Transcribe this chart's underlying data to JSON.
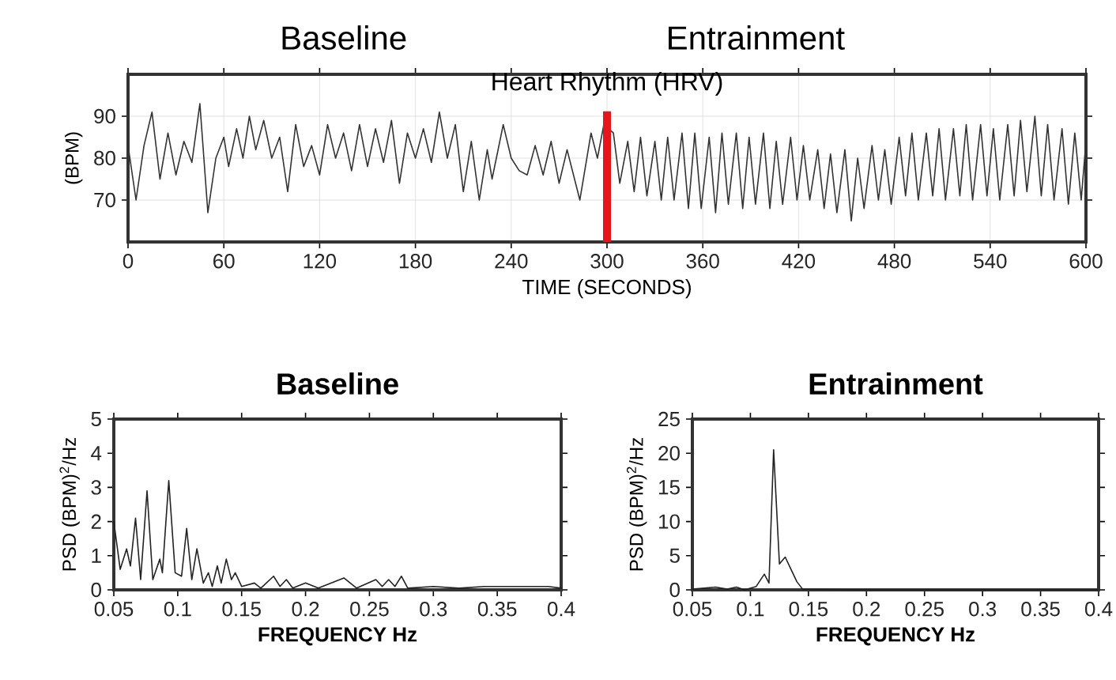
{
  "chart_data": [
    {
      "type": "line",
      "title": "Heart Rhythm (HRV)",
      "xlabel": "TIME (SECONDS)",
      "ylabel": "(BPM)",
      "annotations": [
        "Baseline",
        "Entrainment"
      ],
      "xlim": [
        0,
        600
      ],
      "ylim": [
        60,
        100
      ],
      "xticks": [
        0,
        60,
        120,
        180,
        240,
        300,
        360,
        420,
        480,
        540,
        600
      ],
      "yticks": [
        70,
        80,
        90
      ],
      "grid": true,
      "ref_lines": [
        {
          "axis": "x",
          "value": 300,
          "color": "#e8141b"
        }
      ],
      "series": [
        {
          "color": "#333333",
          "x": [
            0,
            5,
            10,
            15,
            20,
            25,
            30,
            35,
            40,
            45,
            50,
            55,
            60,
            63,
            68,
            72,
            76,
            80,
            85,
            90,
            95,
            100,
            105,
            110,
            115,
            120,
            125,
            130,
            135,
            140,
            145,
            150,
            155,
            160,
            165,
            170,
            175,
            180,
            185,
            190,
            195,
            200,
            205,
            210,
            215,
            220,
            225,
            228,
            235,
            240,
            245,
            250,
            255,
            260,
            265,
            270,
            275,
            283,
            290,
            294,
            298,
            300,
            304,
            308,
            313,
            317,
            321,
            325,
            330,
            334,
            338,
            342,
            347,
            351,
            355,
            359,
            364,
            368,
            372,
            376,
            381,
            385,
            389,
            393,
            398,
            402,
            406,
            410,
            415,
            419,
            423,
            427,
            432,
            436,
            440,
            444,
            449,
            453,
            457,
            461,
            466,
            470,
            474,
            478,
            483,
            487,
            491,
            495,
            500,
            504,
            508,
            512,
            517,
            521,
            525,
            529,
            534,
            538,
            542,
            546,
            551,
            555,
            559,
            563,
            568,
            572,
            576,
            580,
            585,
            589,
            593,
            597,
            600
          ],
          "values": [
            83,
            70,
            83,
            91,
            75,
            86,
            76,
            84,
            79,
            93,
            67,
            80,
            85,
            78,
            87,
            80,
            90,
            82,
            89,
            80,
            85,
            72,
            88,
            78,
            83,
            76,
            88,
            80,
            86,
            77,
            88,
            78,
            87,
            79,
            89,
            74,
            86,
            80,
            87,
            79,
            91,
            80,
            88,
            72,
            84,
            70,
            82,
            75,
            88,
            80,
            77,
            76,
            83,
            76,
            84,
            74,
            82,
            70,
            86,
            80,
            88,
            null,
            86,
            74,
            84,
            72,
            85,
            71,
            84,
            70,
            85,
            70,
            86,
            68,
            86,
            68,
            85,
            67,
            86,
            69,
            86,
            68,
            85,
            69,
            86,
            68,
            84,
            69,
            85,
            70,
            83,
            70,
            82,
            68,
            81,
            67,
            82,
            65,
            80,
            68,
            83,
            70,
            82,
            69,
            85,
            71,
            86,
            70,
            86,
            71,
            87,
            70,
            87,
            71,
            88,
            70,
            88,
            71,
            87,
            70,
            88,
            71,
            89,
            72,
            90,
            71,
            88,
            70,
            87,
            69,
            86,
            70,
            84
          ]
        }
      ]
    },
    {
      "type": "line",
      "title": "Baseline",
      "xlabel": "FREQUENCY Hz",
      "ylabel": "PSD (BPM)$^{2}$/Hz",
      "xlim": [
        0.05,
        0.4
      ],
      "ylim": [
        0,
        5
      ],
      "xticks": [
        0.05,
        0.1,
        0.15,
        0.2,
        0.25,
        0.3,
        0.35,
        0.4
      ],
      "yticks": [
        0,
        1,
        2,
        3,
        4,
        5
      ],
      "series": [
        {
          "color": "#222222",
          "x": [
            0.05,
            0.055,
            0.06,
            0.063,
            0.067,
            0.071,
            0.076,
            0.0805,
            0.086,
            0.088,
            0.093,
            0.098,
            0.103,
            0.107,
            0.111,
            0.115,
            0.12,
            0.124,
            0.127,
            0.131,
            0.134,
            0.138,
            0.142,
            0.145,
            0.15,
            0.16,
            0.165,
            0.175,
            0.18,
            0.185,
            0.19,
            0.2,
            0.21,
            0.23,
            0.24,
            0.255,
            0.26,
            0.265,
            0.27,
            0.275,
            0.28,
            0.3,
            0.32,
            0.34,
            0.365,
            0.39,
            0.4
          ],
          "values": [
            2.0,
            0.6,
            1.2,
            0.7,
            2.1,
            0.3,
            2.9,
            0.3,
            0.9,
            0.5,
            3.2,
            0.5,
            0.4,
            1.8,
            0.3,
            1.2,
            0.2,
            0.5,
            0.1,
            0.7,
            0.2,
            0.9,
            0.3,
            0.5,
            0.1,
            0.2,
            0.05,
            0.4,
            0.1,
            0.3,
            0.05,
            0.2,
            0.05,
            0.35,
            0.05,
            0.3,
            0.1,
            0.3,
            0.1,
            0.4,
            0.05,
            0.1,
            0.05,
            0.1,
            0.1,
            0.1,
            0.05
          ]
        }
      ]
    },
    {
      "type": "line",
      "title": "Entrainment",
      "xlabel": "FREQUENCY Hz",
      "ylabel": "PSD (BPM)$^{2}$/Hz",
      "xlim": [
        0.05,
        0.4
      ],
      "ylim": [
        0,
        25
      ],
      "xticks": [
        0.05,
        0.1,
        0.15,
        0.2,
        0.25,
        0.3,
        0.35,
        0.4
      ],
      "yticks": [
        0,
        5,
        10,
        15,
        20,
        25
      ],
      "series": [
        {
          "color": "#222222",
          "x": [
            0.05,
            0.07,
            0.08,
            0.088,
            0.095,
            0.105,
            0.112,
            0.116,
            0.12,
            0.125,
            0.13,
            0.135,
            0.14,
            0.145,
            0.2,
            0.3,
            0.4
          ],
          "values": [
            0.1,
            0.4,
            0.1,
            0.4,
            0.0,
            0.5,
            2.3,
            1.0,
            20.5,
            3.8,
            4.8,
            3.0,
            1.2,
            0.1,
            0.0,
            0.0,
            0.0
          ]
        }
      ]
    }
  ]
}
